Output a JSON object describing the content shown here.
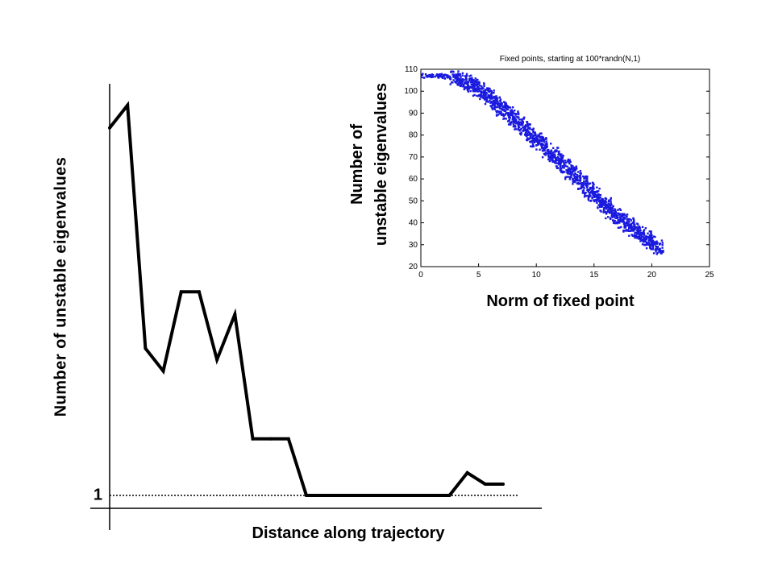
{
  "chart_data": [
    {
      "type": "line",
      "xlabel": "Distance along trajectory",
      "ylabel": "Number of unstable eigenvalues",
      "ytick_labels": [
        "1"
      ],
      "reference_line": {
        "y": 1,
        "style": "dotted"
      },
      "grid": false,
      "color": "#000000",
      "x": [
        0,
        1,
        2,
        3,
        4,
        5,
        6,
        7,
        8,
        9,
        10,
        11,
        12,
        13,
        14,
        15,
        16,
        17,
        18,
        19,
        20,
        21,
        22
      ],
      "values": [
        66,
        70,
        27,
        23,
        37,
        37,
        25,
        33,
        11,
        11,
        11,
        1,
        1,
        1,
        1,
        1,
        1,
        1,
        1,
        1,
        5,
        3,
        3
      ]
    },
    {
      "type": "scatter",
      "title": "Fixed points, starting at 100*randn(N,1)",
      "xlabel": "Norm of fixed point",
      "ylabel_lines": [
        "Number of",
        "unstable eigenvalues"
      ],
      "xlim": [
        0,
        25
      ],
      "ylim": [
        20,
        110
      ],
      "xticks": [
        0,
        5,
        10,
        15,
        20,
        25
      ],
      "yticks": [
        20,
        30,
        40,
        50,
        60,
        70,
        80,
        90,
        100,
        110
      ],
      "marker_color": "#1a1adf",
      "grid": false,
      "series": [
        {
          "values_x": [
            0.5,
            1.0,
            1.5,
            2.0,
            2.5,
            3.0,
            3.5,
            4.0,
            4.5,
            5.0,
            5.5,
            6.0,
            6.5,
            7.0,
            7.5,
            8.0,
            8.5,
            9.0,
            9.5,
            10.0,
            10.5,
            11.0,
            11.5,
            12.0,
            12.5,
            13.0,
            13.5,
            14.0,
            14.5,
            15.0,
            15.5,
            16.0,
            16.5,
            17.0,
            17.5,
            18.0,
            18.5,
            19.0,
            19.5,
            20.0,
            20.5
          ],
          "values_y": [
            107,
            107,
            107,
            107,
            106.5,
            106,
            105,
            104,
            103,
            101,
            99,
            97,
            95,
            92,
            90,
            88,
            85,
            83,
            80,
            78,
            76,
            73,
            71,
            68,
            66,
            63,
            61,
            58,
            55,
            53,
            50,
            48,
            45,
            43,
            41,
            39,
            37,
            35,
            33,
            31,
            29
          ]
        }
      ]
    }
  ]
}
